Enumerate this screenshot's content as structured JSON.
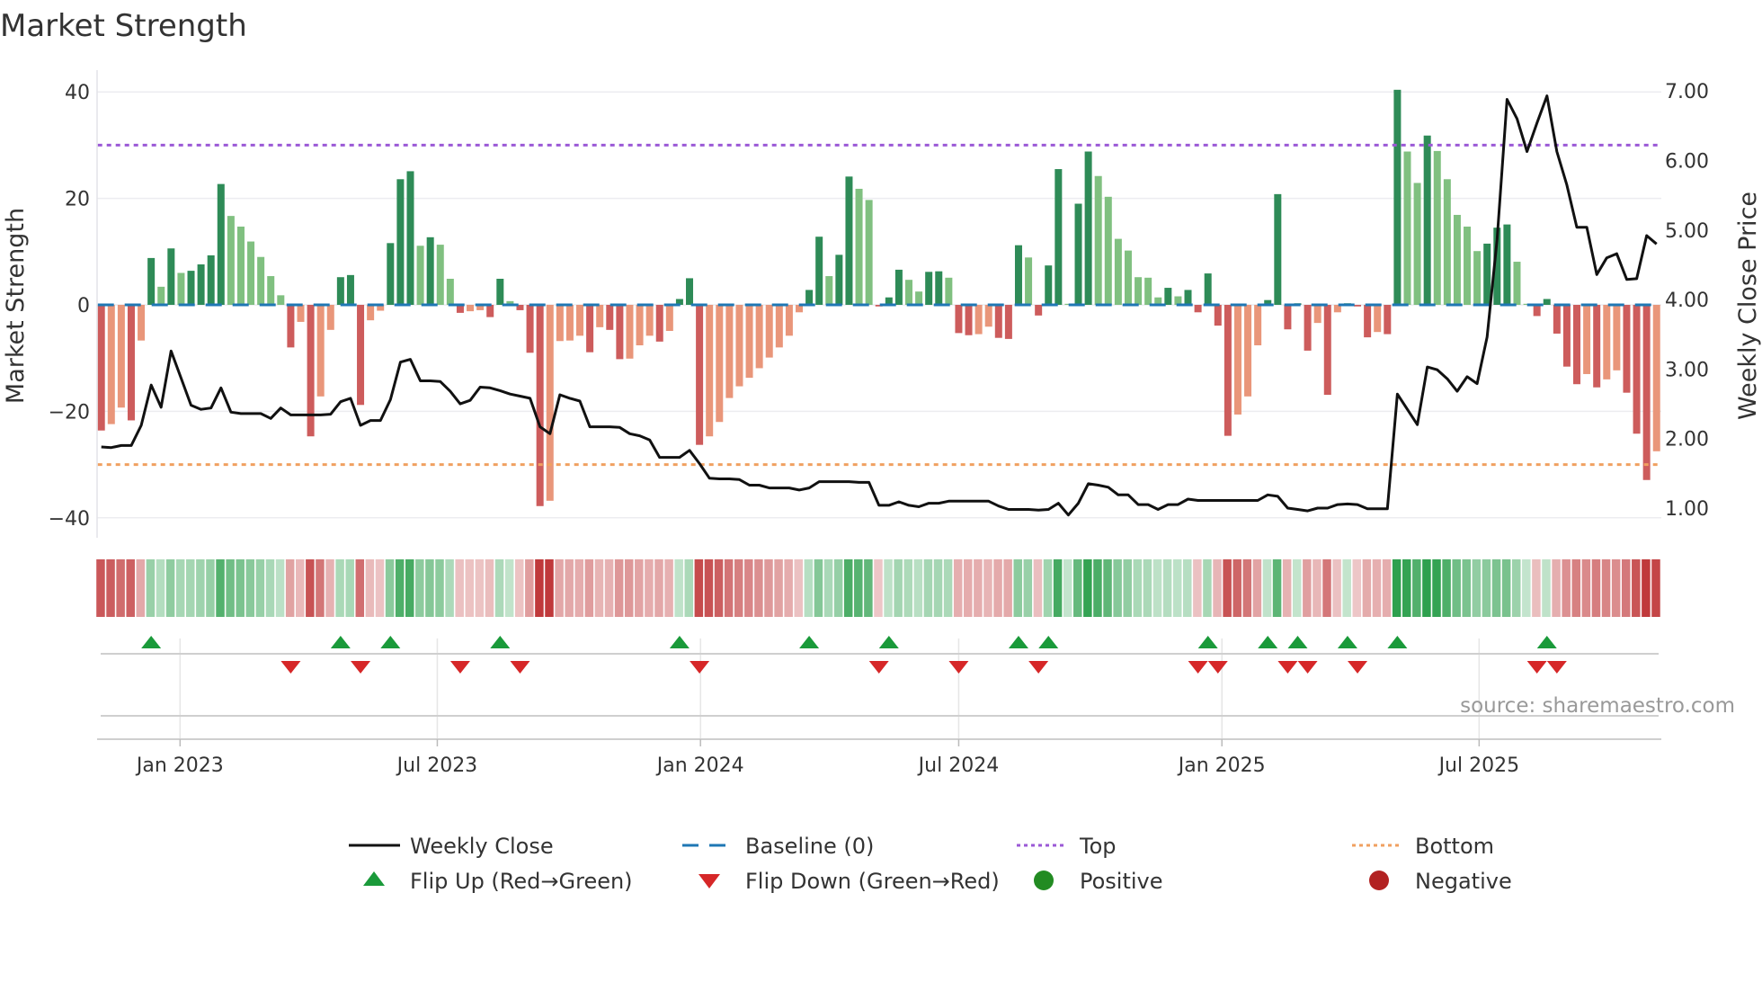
{
  "title": "Market Strength",
  "source": "source: sharemaestro.com",
  "colors": {
    "strong_pos": "#2e8b57",
    "weak_pos": "#80c080",
    "strong_neg": "#cd5c5c",
    "weak_neg": "#e9967a",
    "price": "#111111",
    "baseline": "#1f77b4",
    "top": "#9b59d6",
    "bottom": "#f0a060",
    "flip_up": "#1a9a3a",
    "flip_down": "#d62728",
    "positive_dot": "#228b22",
    "negative_dot": "#b22222"
  },
  "chart_data": {
    "type": "bar",
    "title": "Market Strength",
    "ylabel": "Market Strength",
    "y2label": "Weekly Close Price",
    "ylim": [
      -44,
      44
    ],
    "y2lim": [
      0.82,
      7.3
    ],
    "yticks": [
      "40",
      "20",
      "0",
      "−20",
      "−40"
    ],
    "ytick_values": [
      40,
      20,
      0,
      -20,
      -40
    ],
    "y2ticks": [
      "7.00",
      "6.00",
      "5.00",
      "4.00",
      "3.00",
      "2.00",
      "1.00"
    ],
    "y2tick_values": [
      7,
      6,
      5,
      4,
      3,
      2,
      1
    ],
    "xticks": [
      {
        "label": "Jan 2023",
        "week": 8.9
      },
      {
        "label": "Jul 2023",
        "week": 34.7
      },
      {
        "label": "Jan 2024",
        "week": 61.1
      },
      {
        "label": "Jul 2024",
        "week": 87.0
      },
      {
        "label": "Jan 2025",
        "week": 113.4
      },
      {
        "label": "Jul 2025",
        "week": 139.2
      }
    ],
    "top_level": 30,
    "bottom_level": -30,
    "baseline": 0,
    "strength": [
      -23.6,
      -22.4,
      -19.3,
      -21.7,
      -6.7,
      8.8,
      3.4,
      10.6,
      6.0,
      6.4,
      7.6,
      9.3,
      22.7,
      16.7,
      14.7,
      11.9,
      9.0,
      5.4,
      1.8,
      -8.0,
      -3.2,
      -24.7,
      -17.2,
      -4.7,
      5.2,
      5.6,
      -18.8,
      -2.9,
      -1.1,
      11.6,
      23.6,
      25.1,
      11.1,
      12.7,
      11.3,
      4.9,
      -1.5,
      -1.2,
      -1.0,
      -2.3,
      4.9,
      0.7,
      -1.0,
      -9.0,
      -37.8,
      -36.8,
      -6.8,
      -6.7,
      -5.8,
      -8.9,
      -4.2,
      -4.7,
      -10.2,
      -10.1,
      -7.6,
      -5.8,
      -6.9,
      -4.9,
      1.1,
      5.0,
      -26.3,
      -24.7,
      -22.0,
      -17.5,
      -15.3,
      -13.7,
      -11.9,
      -9.9,
      -8.0,
      -5.8,
      -1.4,
      2.8,
      12.8,
      5.4,
      9.4,
      24.1,
      21.8,
      19.7,
      -0.3,
      1.4,
      6.6,
      4.7,
      2.5,
      6.2,
      6.3,
      5.1,
      -5.3,
      -5.7,
      -5.5,
      -4.1,
      -6.2,
      -6.4,
      11.2,
      8.9,
      -2.0,
      7.4,
      25.5,
      0.2,
      19.0,
      28.8,
      24.2,
      20.3,
      12.4,
      10.2,
      5.2,
      5.1,
      1.4,
      3.2,
      1.6,
      2.8,
      -1.4,
      5.9,
      -3.9,
      -24.6,
      -20.6,
      -17.2,
      -7.6,
      0.9,
      20.8,
      -4.6,
      0.3,
      -8.6,
      -3.4,
      -16.9,
      -1.4,
      0.3,
      -0.3,
      -6.1,
      -5.1,
      -5.5,
      40.4,
      28.8,
      22.9,
      31.8,
      28.9,
      23.6,
      16.9,
      14.7,
      10.1,
      11.5,
      14.5,
      15.1,
      8.1,
      0.2,
      -2.1,
      1.1,
      -5.4,
      -11.6,
      -14.9,
      -13.0,
      -15.5,
      -14.0,
      -12.3,
      -16.5,
      -24.2,
      -32.9,
      -27.5
    ],
    "weekly_close": [
      1.88,
      1.87,
      1.9,
      1.9,
      2.19,
      2.77,
      2.45,
      3.26,
      2.87,
      2.48,
      2.42,
      2.44,
      2.73,
      2.38,
      2.36,
      2.36,
      2.36,
      2.29,
      2.44,
      2.34,
      2.34,
      2.34,
      2.34,
      2.35,
      2.53,
      2.58,
      2.19,
      2.26,
      2.26,
      2.56,
      3.1,
      3.14,
      2.83,
      2.83,
      2.82,
      2.68,
      2.5,
      2.55,
      2.74,
      2.73,
      2.69,
      2.64,
      2.61,
      2.58,
      2.17,
      2.07,
      2.63,
      2.58,
      2.54,
      2.17,
      2.17,
      2.17,
      2.16,
      2.07,
      2.04,
      1.98,
      1.73,
      1.73,
      1.73,
      1.83,
      1.64,
      1.43,
      1.42,
      1.42,
      1.41,
      1.33,
      1.33,
      1.29,
      1.29,
      1.29,
      1.26,
      1.29,
      1.38,
      1.38,
      1.38,
      1.38,
      1.37,
      1.37,
      1.04,
      1.04,
      1.09,
      1.04,
      1.02,
      1.07,
      1.07,
      1.1,
      1.1,
      1.1,
      1.1,
      1.1,
      1.03,
      0.98,
      0.98,
      0.98,
      0.97,
      0.98,
      1.07,
      0.9,
      1.07,
      1.35,
      1.33,
      1.3,
      1.19,
      1.19,
      1.05,
      1.05,
      0.98,
      1.05,
      1.05,
      1.13,
      1.11,
      1.11,
      1.11,
      1.11,
      1.11,
      1.11,
      1.11,
      1.19,
      1.17,
      1.0,
      0.98,
      0.96,
      1.0,
      1.0,
      1.05,
      1.06,
      1.05,
      0.99,
      0.99,
      0.99,
      2.64,
      2.42,
      2.2,
      3.03,
      2.99,
      2.86,
      2.68,
      2.89,
      2.79,
      3.46,
      4.86,
      6.88,
      6.6,
      6.13,
      6.54,
      6.93,
      6.13,
      5.65,
      5.04,
      5.04,
      4.36,
      4.6,
      4.66,
      4.29,
      4.3,
      4.92,
      4.8
    ],
    "flip_up_weeks": [
      6,
      25,
      30,
      41,
      59,
      72,
      80,
      93,
      96,
      112,
      118,
      121,
      126,
      131,
      146
    ],
    "flip_down_weeks": [
      20,
      27,
      37,
      43,
      61,
      79,
      87,
      95,
      111,
      113,
      120,
      122,
      127,
      145,
      147
    ],
    "legend_position": "bottom"
  },
  "legend": {
    "weekly_close": "Weekly Close",
    "baseline": "Baseline (0)",
    "top": "Top",
    "bottom": "Bottom",
    "flip_up": "Flip Up (Red→Green)",
    "flip_down": "Flip Down (Green→Red)",
    "positive": "Positive",
    "negative": "Negative"
  }
}
